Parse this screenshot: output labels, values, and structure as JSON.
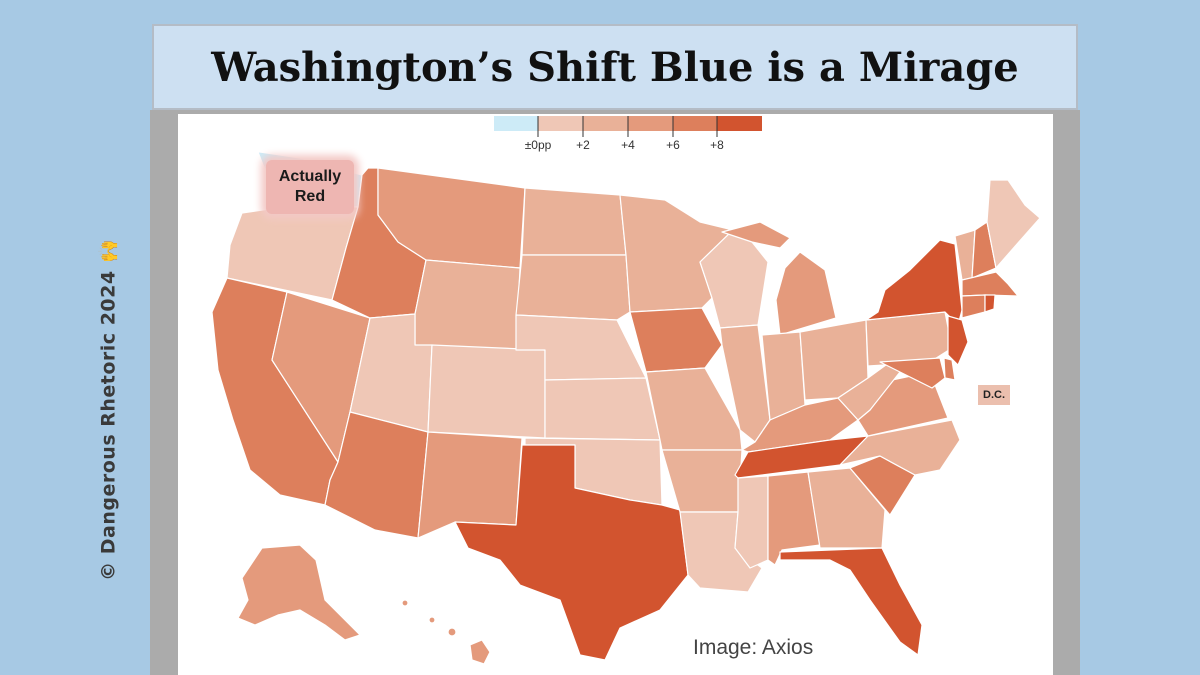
{
  "title": "Washington’s Shift Blue is a Mirage",
  "side_credit": "© Dangerous Rhetoric 2024 🙌",
  "legend": {
    "colors": [
      "#cdebf7",
      "#efc7b6",
      "#e9b198",
      "#e49a7c",
      "#dd7f5c",
      "#d2542f"
    ],
    "ticks": [
      "±0pp",
      "+2",
      "+4",
      "+6",
      "+8"
    ]
  },
  "callout": {
    "line1": "Actually",
    "line2": "Red"
  },
  "dc_label": "D.C.",
  "source": "Image: Axios",
  "colors": {
    "background": "#a7c9e4",
    "title_bar": "#cde0f2",
    "shift_0_2": "#efc7b6",
    "shift_2_4": "#e9b198",
    "shift_4_6": "#e49a7c",
    "shift_6_8": "#dd7f5c",
    "shift_8_plus": "#d2542f",
    "washington": "#cdebf7"
  }
}
